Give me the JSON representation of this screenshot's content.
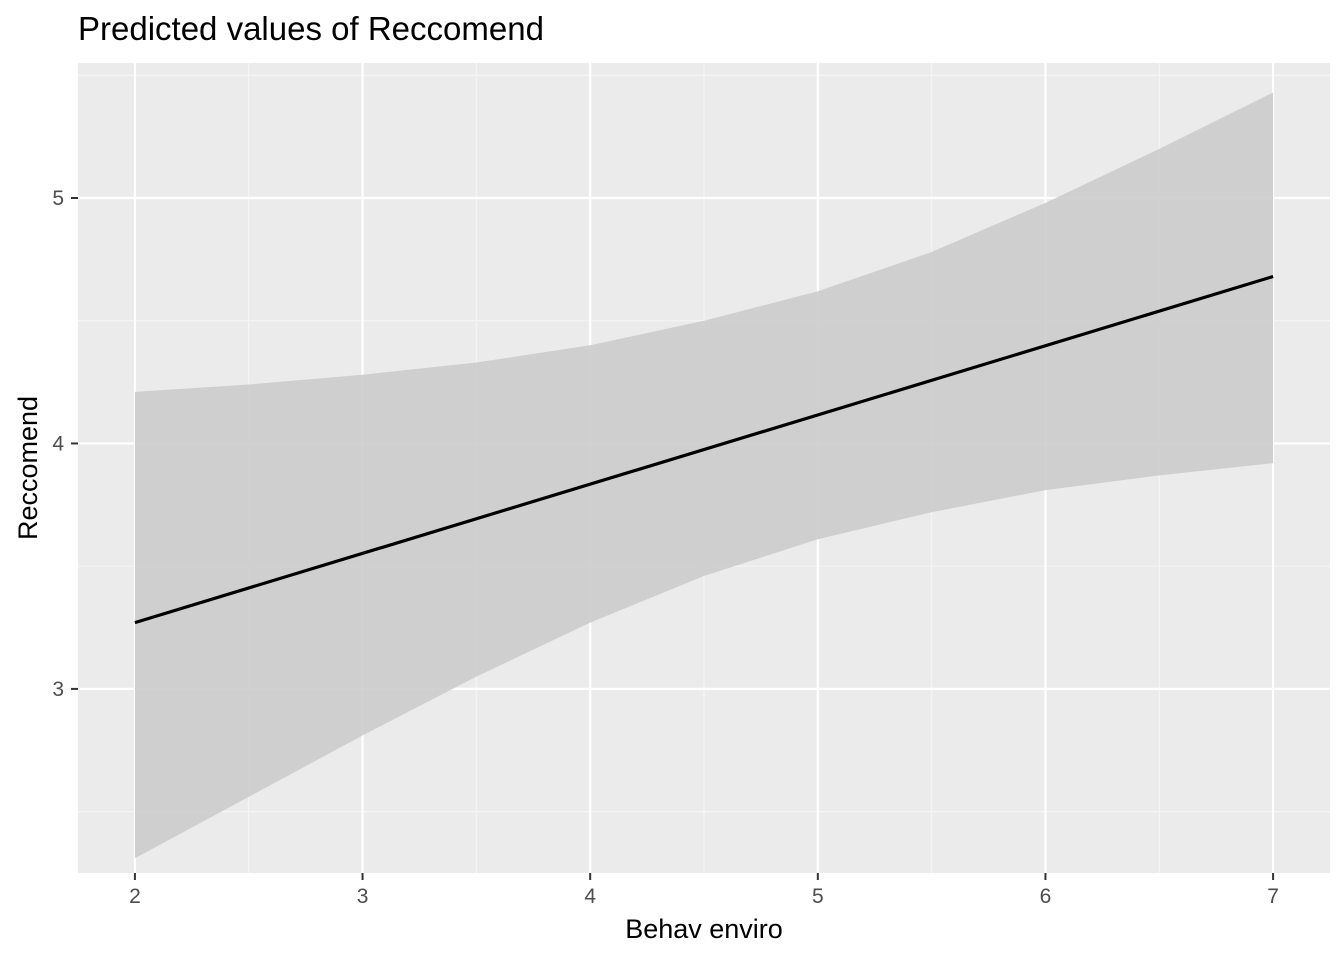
{
  "chart_data": {
    "type": "line",
    "title": "Predicted values of Reccomend",
    "xlabel": "Behav enviro",
    "ylabel": "Reccomend",
    "xlim": [
      1.75,
      7.25
    ],
    "ylim": [
      2.25,
      5.55
    ],
    "x_ticks": [
      2,
      3,
      4,
      5,
      6,
      7
    ],
    "y_ticks": [
      3,
      4,
      5
    ],
    "grid": true,
    "legend": "none",
    "series": [
      {
        "x": [
          2,
          7
        ],
        "y": [
          3.27,
          4.68
        ]
      }
    ],
    "ci_band": [
      {
        "x": 2,
        "lower": 2.31,
        "upper": 4.21
      },
      {
        "x": 2.5,
        "lower": 2.56,
        "upper": 4.24
      },
      {
        "x": 3,
        "lower": 2.81,
        "upper": 4.28
      },
      {
        "x": 3.5,
        "lower": 3.05,
        "upper": 4.33
      },
      {
        "x": 4,
        "lower": 3.27,
        "upper": 4.4
      },
      {
        "x": 4.5,
        "lower": 3.46,
        "upper": 4.5
      },
      {
        "x": 5,
        "lower": 3.61,
        "upper": 4.62
      },
      {
        "x": 5.5,
        "lower": 3.72,
        "upper": 4.78
      },
      {
        "x": 6,
        "lower": 3.81,
        "upper": 4.98
      },
      {
        "x": 6.5,
        "lower": 3.87,
        "upper": 5.2
      },
      {
        "x": 7,
        "lower": 3.92,
        "upper": 5.43
      }
    ],
    "colors": {
      "panel": "#ebebeb",
      "grid_major": "#ffffff",
      "grid_minor": "#f5f5f5",
      "band": "#cccccc",
      "line": "#000000",
      "tick": "#333333"
    }
  }
}
